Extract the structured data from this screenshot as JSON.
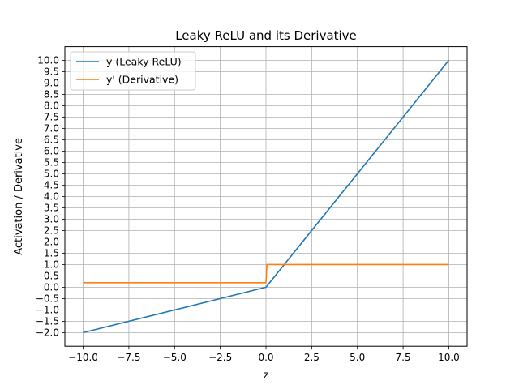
{
  "chart_data": {
    "type": "line",
    "title": "Leaky ReLU and its Derivative",
    "xlabel": "z",
    "ylabel": "Activation / Derivative",
    "xlim": [
      -11,
      11
    ],
    "ylim": [
      -2.6,
      10.6
    ],
    "xticks": [
      -10.0,
      -7.5,
      -5.0,
      -2.5,
      0.0,
      2.5,
      5.0,
      7.5,
      10.0
    ],
    "xtick_labels": [
      "−10.0",
      "−7.5",
      "−5.0",
      "−2.5",
      "0.0",
      "2.5",
      "5.0",
      "7.5",
      "10.0"
    ],
    "yticks": [
      -2.0,
      -1.5,
      -1.0,
      -0.5,
      0.0,
      0.5,
      1.0,
      1.5,
      2.0,
      2.5,
      3.0,
      3.5,
      4.0,
      4.5,
      5.0,
      5.5,
      6.0,
      6.5,
      7.0,
      7.5,
      8.0,
      8.5,
      9.0,
      9.5,
      10.0
    ],
    "ytick_labels": [
      "−2.0",
      "−1.5",
      "−1.0",
      "−0.5",
      "0.0",
      "0.5",
      "1.0",
      "1.5",
      "2.0",
      "2.5",
      "3.0",
      "3.5",
      "4.0",
      "4.5",
      "5.0",
      "5.5",
      "6.0",
      "6.5",
      "7.0",
      "7.5",
      "8.0",
      "8.5",
      "9.0",
      "9.5",
      "10.0"
    ],
    "grid": true,
    "legend_position": "top-left",
    "series": [
      {
        "name": "y (Leaky ReLU)",
        "color": "#1f77b4",
        "x": [
          -10,
          0,
          10
        ],
        "y": [
          -2,
          0,
          10
        ]
      },
      {
        "name": "y' (Derivative)",
        "color": "#ff7f0e",
        "x": [
          -10,
          0,
          0.05,
          10
        ],
        "y": [
          0.2,
          0.2,
          1,
          1
        ]
      }
    ]
  }
}
